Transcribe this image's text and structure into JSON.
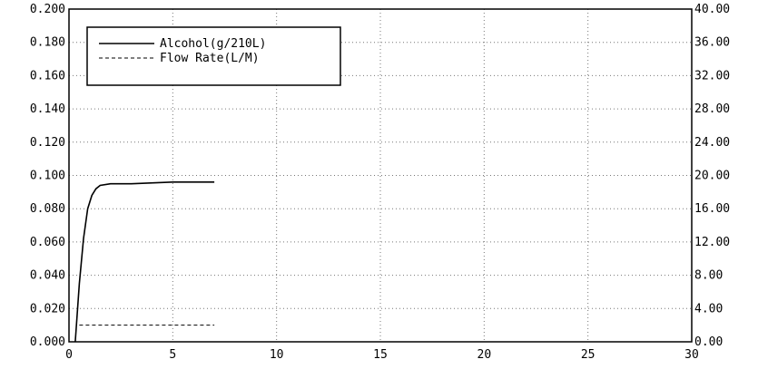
{
  "chart_data": {
    "type": "line",
    "title": "",
    "xlabel": "",
    "ylabel": "",
    "y2label": "",
    "xlim": [
      0,
      30
    ],
    "ylim": [
      0,
      0.2
    ],
    "y2lim": [
      0,
      40
    ],
    "grid": true,
    "legend_position": "top-left",
    "x_ticks": [
      "0",
      "5",
      "10",
      "15",
      "20",
      "25",
      "30"
    ],
    "y_ticks": [
      "0.000",
      "0.020",
      "0.040",
      "0.060",
      "0.080",
      "0.100",
      "0.120",
      "0.140",
      "0.160",
      "0.180",
      "0.200"
    ],
    "y2_ticks": [
      "0.00",
      "4.00",
      "8.00",
      "12.00",
      "16.00",
      "20.00",
      "24.00",
      "28.00",
      "32.00",
      "36.00",
      "40.00"
    ],
    "series": [
      {
        "name": "Alcohol(g/210L)",
        "axis": "left",
        "style": "solid",
        "color": "#000000",
        "x": [
          0.3,
          0.5,
          0.7,
          0.9,
          1.1,
          1.3,
          1.5,
          2.0,
          3.0,
          5.0,
          7.0
        ],
        "y": [
          0.0,
          0.035,
          0.062,
          0.08,
          0.088,
          0.092,
          0.094,
          0.095,
          0.095,
          0.096,
          0.096
        ]
      },
      {
        "name": "Flow Rate(L/M)",
        "axis": "right",
        "style": "dashed",
        "color": "#000000",
        "x": [
          0.5,
          1.0,
          2.0,
          4.0,
          7.0
        ],
        "y": [
          2.0,
          2.0,
          2.0,
          2.0,
          2.0
        ]
      }
    ]
  }
}
